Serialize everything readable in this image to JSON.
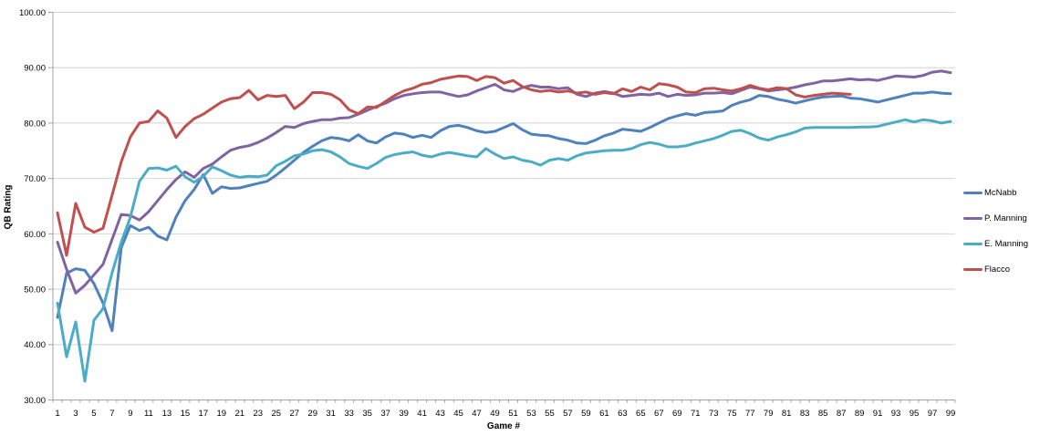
{
  "chart_data": {
    "type": "line",
    "title": "",
    "xlabel": "Game #",
    "ylabel": "QB Rating",
    "ylim": [
      30,
      100
    ],
    "ytick_step": 10,
    "ytick_labels": [
      "100.00",
      "90.00",
      "80.00",
      "70.00",
      "60.00",
      "50.00",
      "40.00",
      "30.00"
    ],
    "xtick_labels": [
      1,
      3,
      5,
      7,
      9,
      11,
      13,
      15,
      17,
      19,
      21,
      23,
      25,
      27,
      29,
      31,
      33,
      35,
      37,
      39,
      41,
      43,
      45,
      47,
      49,
      51,
      53,
      55,
      57,
      59,
      61,
      63,
      65,
      67,
      69,
      71,
      73,
      75,
      77,
      79,
      81,
      83,
      85,
      87,
      89,
      91,
      93,
      95,
      97,
      99
    ],
    "grid": "horizontal-only",
    "legend_position": "right",
    "colors": {
      "gridline": "#D4D4D4",
      "axis": "#A3A3A3",
      "text": "#000000",
      "background": "#FFFFFF"
    },
    "series": [
      {
        "name": "McNabb",
        "color": "#4F81BD",
        "first_game": 1,
        "values": [
          44.9,
          52.9,
          53.7,
          53.4,
          51.0,
          47.5,
          42.5,
          57.5,
          61.5,
          60.6,
          61.2,
          59.6,
          58.9,
          63.0,
          66.0,
          68.0,
          70.7,
          67.3,
          68.5,
          68.2,
          68.3,
          68.7,
          69.1,
          69.5,
          70.6,
          71.9,
          73.3,
          74.7,
          75.8,
          76.8,
          77.4,
          77.2,
          76.8,
          77.9,
          76.8,
          76.4,
          77.5,
          78.2,
          78.0,
          77.4,
          77.8,
          77.4,
          78.6,
          79.4,
          79.6,
          79.2,
          78.6,
          78.3,
          78.5,
          79.2,
          79.9,
          78.8,
          78.0,
          77.8,
          77.7,
          77.2,
          76.9,
          76.4,
          76.3,
          76.9,
          77.7,
          78.2,
          78.9,
          78.7,
          78.5,
          79.2,
          80.0,
          80.8,
          81.3,
          81.7,
          81.4,
          81.9,
          82.0,
          82.2,
          83.2,
          83.8,
          84.2,
          85.0,
          84.8,
          84.3,
          84.0,
          83.6,
          84.0,
          84.4,
          84.7,
          84.8,
          84.9,
          84.5,
          84.4,
          84.1,
          83.8,
          84.2,
          84.6,
          85.0,
          85.4,
          85.4,
          85.6,
          85.4,
          85.3
        ]
      },
      {
        "name": "P. Manning",
        "color": "#8064A2",
        "first_game": 1,
        "values": [
          58.5,
          53.6,
          49.3,
          50.7,
          52.6,
          54.5,
          59.0,
          63.5,
          63.3,
          62.5,
          64.0,
          66.0,
          68.0,
          69.8,
          71.2,
          70.2,
          71.8,
          72.6,
          73.9,
          75.1,
          75.6,
          75.9,
          76.5,
          77.3,
          78.3,
          79.4,
          79.2,
          79.9,
          80.3,
          80.6,
          80.6,
          80.9,
          81.0,
          81.6,
          82.3,
          83.0,
          83.6,
          84.4,
          85.0,
          85.3,
          85.5,
          85.6,
          85.6,
          85.2,
          84.8,
          85.1,
          85.8,
          86.4,
          87.0,
          86.0,
          85.7,
          86.4,
          86.8,
          86.5,
          86.5,
          86.2,
          86.4,
          85.2,
          84.8,
          85.4,
          85.7,
          85.4,
          84.8,
          85.0,
          85.2,
          85.1,
          85.4,
          84.8,
          85.2,
          85.0,
          85.1,
          85.4,
          85.4,
          85.5,
          85.3,
          85.9,
          86.5,
          86.2,
          85.8,
          86.0,
          86.2,
          86.5,
          86.9,
          87.2,
          87.6,
          87.6,
          87.8,
          88.0,
          87.8,
          87.9,
          87.7,
          88.1,
          88.5,
          88.4,
          88.3,
          88.6,
          89.2,
          89.4,
          89.1
        ]
      },
      {
        "name": "E. Manning",
        "color": "#4BACC6",
        "first_game": 1,
        "values": [
          47.5,
          37.8,
          44.1,
          33.4,
          44.4,
          46.5,
          53.0,
          58.5,
          63.0,
          69.5,
          71.8,
          71.9,
          71.5,
          72.2,
          70.3,
          69.3,
          70.4,
          72.1,
          71.4,
          70.6,
          70.2,
          70.4,
          70.3,
          70.6,
          72.3,
          73.1,
          74.1,
          74.4,
          75.0,
          75.2,
          74.8,
          73.9,
          72.7,
          72.2,
          71.8,
          72.7,
          73.8,
          74.3,
          74.6,
          74.8,
          74.2,
          73.9,
          74.4,
          74.7,
          74.4,
          74.1,
          73.9,
          75.4,
          74.4,
          73.6,
          73.9,
          73.3,
          73.0,
          72.4,
          73.3,
          73.6,
          73.3,
          74.1,
          74.6,
          74.8,
          75.0,
          75.1,
          75.1,
          75.4,
          76.1,
          76.5,
          76.2,
          75.7,
          75.7,
          75.9,
          76.4,
          76.8,
          77.2,
          77.8,
          78.5,
          78.7,
          78.1,
          77.3,
          76.9,
          77.5,
          77.9,
          78.4,
          79.1,
          79.2,
          79.2,
          79.2,
          79.2,
          79.2,
          79.3,
          79.3,
          79.4,
          79.8,
          80.2,
          80.6,
          80.2,
          80.6,
          80.4,
          80.0,
          80.3
        ]
      },
      {
        "name": "Flacco",
        "color": "#C0504D",
        "first_game": 1,
        "values": [
          63.8,
          56.1,
          65.5,
          61.2,
          60.3,
          61.0,
          67.0,
          73.0,
          77.5,
          80.0,
          80.3,
          82.2,
          80.9,
          77.4,
          79.4,
          80.8,
          81.6,
          82.7,
          83.8,
          84.4,
          84.6,
          85.9,
          84.2,
          85.0,
          84.8,
          85.0,
          82.6,
          83.8,
          85.5,
          85.5,
          85.2,
          84.2,
          82.4,
          81.7,
          82.9,
          82.8,
          83.9,
          85.0,
          85.8,
          86.3,
          87.0,
          87.3,
          87.9,
          88.2,
          88.5,
          88.4,
          87.7,
          88.4,
          88.2,
          87.2,
          87.7,
          86.6,
          86.0,
          85.7,
          85.9,
          85.6,
          85.8,
          85.4,
          85.6,
          85.2,
          85.5,
          85.3,
          86.2,
          85.7,
          86.5,
          86.0,
          87.1,
          86.9,
          86.5,
          85.6,
          85.5,
          86.2,
          86.3,
          86.0,
          85.8,
          86.2,
          86.8,
          86.3,
          86.0,
          86.4,
          86.2,
          85.1,
          84.7,
          85.0,
          85.2,
          85.4,
          85.3,
          85.2
        ]
      }
    ]
  }
}
